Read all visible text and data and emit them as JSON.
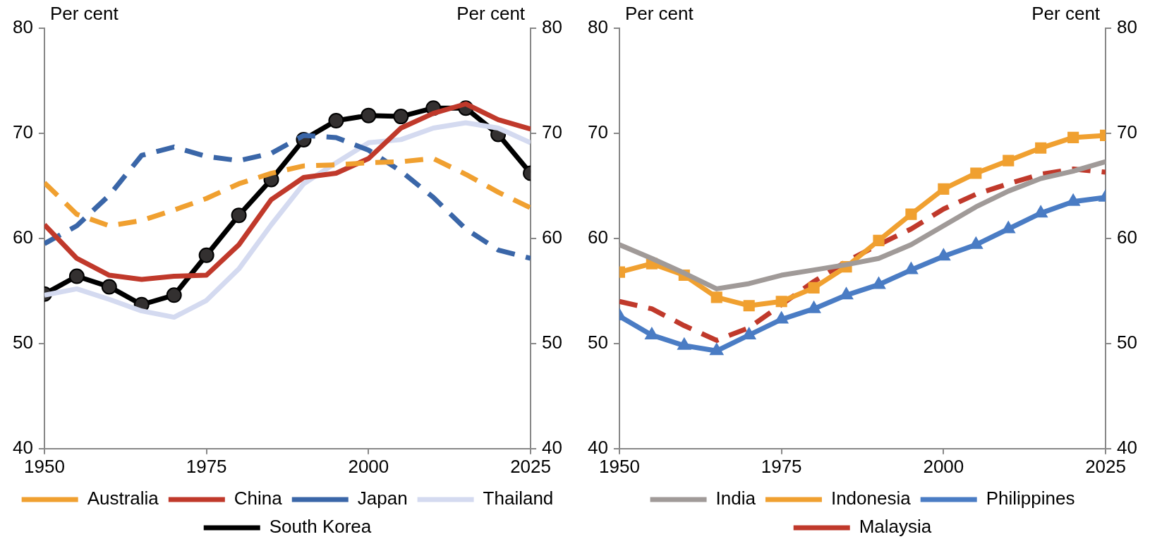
{
  "chart_data": [
    {
      "type": "line",
      "ylabel": "Per cent",
      "y2label": "Per cent",
      "x": [
        1950,
        1955,
        1960,
        1965,
        1970,
        1975,
        1980,
        1985,
        1990,
        1995,
        2000,
        2005,
        2010,
        2015,
        2020,
        2025
      ],
      "xlim": [
        1950,
        2025
      ],
      "xticks": [
        1950,
        1975,
        2000,
        2025
      ],
      "ylim": [
        40,
        80
      ],
      "yticks": [
        40,
        50,
        60,
        70,
        80
      ],
      "y2lim": [
        40,
        80
      ],
      "y2ticks": [
        40,
        50,
        60,
        70,
        80
      ],
      "grid": false,
      "legend": "bottom",
      "series": [
        {
          "name": "Australia",
          "color": "#f0a030",
          "line_style": "dashed",
          "marker": "none",
          "values": [
            65.3,
            62.3,
            61.2,
            61.7,
            62.7,
            63.8,
            65.2,
            66.2,
            66.9,
            67.0,
            67.2,
            67.3,
            67.6,
            66.1,
            64.4,
            62.9
          ]
        },
        {
          "name": "China",
          "color": "#c0392b",
          "line_style": "solid",
          "marker": "none",
          "values": [
            61.3,
            58.1,
            56.5,
            56.1,
            56.4,
            56.5,
            59.4,
            63.7,
            65.8,
            66.2,
            67.6,
            70.5,
            71.9,
            72.8,
            71.3,
            70.4
          ]
        },
        {
          "name": "Japan",
          "color": "#3a66a8",
          "line_style": "dashed",
          "marker": "none",
          "values": [
            59.5,
            61.2,
            64.1,
            67.9,
            68.7,
            67.8,
            67.4,
            68.1,
            69.8,
            69.6,
            68.4,
            66.4,
            63.9,
            60.9,
            58.9,
            58.1
          ]
        },
        {
          "name": "Thailand",
          "color": "#d4daf0",
          "line_style": "solid",
          "marker": "none",
          "values": [
            54.6,
            55.2,
            54.2,
            53.1,
            52.5,
            54.1,
            57.1,
            61.3,
            65.2,
            67.2,
            69.1,
            69.4,
            70.5,
            71.0,
            70.5,
            69.1
          ]
        },
        {
          "name": "South Korea",
          "color": "#000000",
          "line_style": "solid",
          "marker": "circle",
          "values": [
            54.7,
            56.4,
            55.4,
            53.7,
            54.6,
            58.4,
            62.2,
            65.6,
            69.4,
            71.2,
            71.7,
            71.6,
            72.4,
            72.4,
            69.9,
            66.2
          ]
        }
      ]
    },
    {
      "type": "line",
      "ylabel": "Per cent",
      "y2label": "Per cent",
      "x": [
        1950,
        1955,
        1960,
        1965,
        1970,
        1975,
        1980,
        1985,
        1990,
        1995,
        2000,
        2005,
        2010,
        2015,
        2020,
        2025
      ],
      "xlim": [
        1950,
        2025
      ],
      "xticks": [
        1950,
        1975,
        2000,
        2025
      ],
      "ylim": [
        40,
        80
      ],
      "yticks": [
        40,
        50,
        60,
        70,
        80
      ],
      "y2lim": [
        40,
        80
      ],
      "y2ticks": [
        40,
        50,
        60,
        70,
        80
      ],
      "grid": false,
      "legend": "bottom",
      "series": [
        {
          "name": "India",
          "color": "#a09a98",
          "line_style": "solid",
          "marker": "none",
          "values": [
            59.4,
            58.1,
            56.7,
            55.2,
            55.7,
            56.5,
            57.0,
            57.5,
            58.1,
            59.4,
            61.2,
            63.0,
            64.5,
            65.7,
            66.4,
            67.3
          ]
        },
        {
          "name": "Indonesia",
          "color": "#f0a030",
          "line_style": "solid",
          "marker": "square",
          "values": [
            56.8,
            57.6,
            56.5,
            54.4,
            53.6,
            54.0,
            55.3,
            57.3,
            59.8,
            62.3,
            64.7,
            66.2,
            67.4,
            68.6,
            69.6,
            69.8
          ]
        },
        {
          "name": "Philippines",
          "color": "#4a7cc4",
          "line_style": "solid",
          "marker": "triangle",
          "values": [
            52.6,
            50.8,
            49.8,
            49.3,
            50.8,
            52.3,
            53.3,
            54.6,
            55.6,
            57.0,
            58.3,
            59.4,
            60.9,
            62.4,
            63.5,
            63.9
          ]
        },
        {
          "name": "Malaysia",
          "color": "#c0392b",
          "line_style": "dashed",
          "marker": "none",
          "values": [
            54.0,
            53.3,
            51.7,
            50.3,
            51.5,
            53.7,
            55.9,
            57.8,
            59.4,
            60.9,
            62.8,
            64.2,
            65.2,
            66.1,
            66.6,
            66.3
          ]
        }
      ]
    }
  ]
}
